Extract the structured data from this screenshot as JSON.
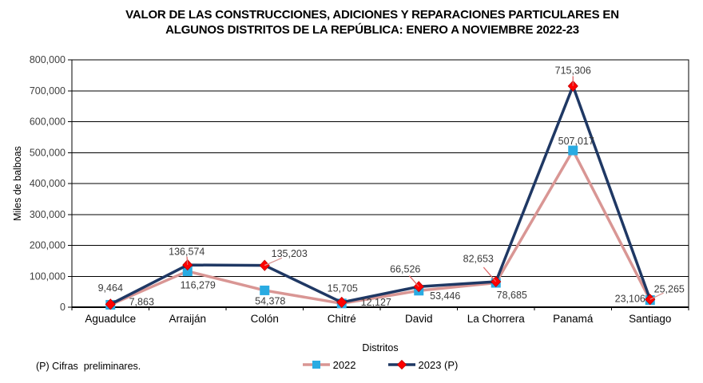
{
  "header": {
    "title_line1": "VALOR DE LAS CONSTRUCCIONES, ADICIONES Y REPARACIONES PARTICULARES EN",
    "title_line2": "ALGUNOS DISTRITOS DE LA REPÚBLICA: ENERO A NOVIEMBRE 2022-23"
  },
  "footnote": "(P) Cifras  preliminares.",
  "chart_data": {
    "type": "line",
    "title": "VALOR DE LAS CONSTRUCCIONES, ADICIONES Y REPARACIONES PARTICULARES EN ALGUNOS DISTRITOS DE LA REPÚBLICA: ENERO A NOVIEMBRE 2022-23",
    "xlabel": "Distritos",
    "ylabel": "Miles de balboas",
    "ylim": [
      0,
      800000
    ],
    "ytick_step": 100000,
    "ytick_labels": [
      "0",
      "100,000",
      "200,000",
      "300,000",
      "400,000",
      "500,000",
      "600,000",
      "700,000",
      "800,000"
    ],
    "grid": "horizontal",
    "legend_position": "bottom-center",
    "categories": [
      "Aguadulce",
      "Arraiján",
      "Colón",
      "Chitré",
      "David",
      "La Chorrera",
      "Panamá",
      "Santiago"
    ],
    "series": [
      {
        "name": "2022",
        "line_color": "#D99694",
        "marker": "square",
        "marker_color": "#29ABE2",
        "values": [
          7863,
          116279,
          54378,
          12127,
          53446,
          78685,
          507017,
          23106
        ],
        "labels": [
          "7,863",
          "116,279",
          "54,378",
          "12,127",
          "53,446",
          "78,685",
          "507,017",
          "23,106"
        ],
        "label_offsets": [
          [
            39,
            -4
          ],
          [
            13,
            17
          ],
          [
            7,
            13
          ],
          [
            43,
            -2
          ],
          [
            33,
            6
          ],
          [
            20,
            15
          ],
          [
            4,
            -12
          ],
          [
            -25,
            -2
          ]
        ],
        "leaders": [
          null,
          null,
          null,
          null,
          null,
          null,
          null,
          null
        ]
      },
      {
        "name": "2023 (P)",
        "line_color": "#1F3864",
        "marker": "diamond",
        "marker_color": "#FF0000",
        "values": [
          9464,
          136574,
          135203,
          15705,
          66526,
          82653,
          715306,
          25265
        ],
        "labels": [
          "9,464",
          "136,574",
          "135,203",
          "15,705",
          "66,526",
          "82,653",
          "715,306",
          "25,265"
        ],
        "label_offsets": [
          [
            0,
            -21
          ],
          [
            -1,
            -17
          ],
          [
            31,
            -15
          ],
          [
            1,
            -18
          ],
          [
            -17,
            -22
          ],
          [
            -22,
            -29
          ],
          [
            0,
            -20
          ],
          [
            24,
            -13
          ]
        ],
        "leaders": [
          null,
          "#E06666",
          "#D99694",
          null,
          "#E06666",
          "#E06666",
          "#E06666",
          "#D99694"
        ]
      }
    ]
  }
}
